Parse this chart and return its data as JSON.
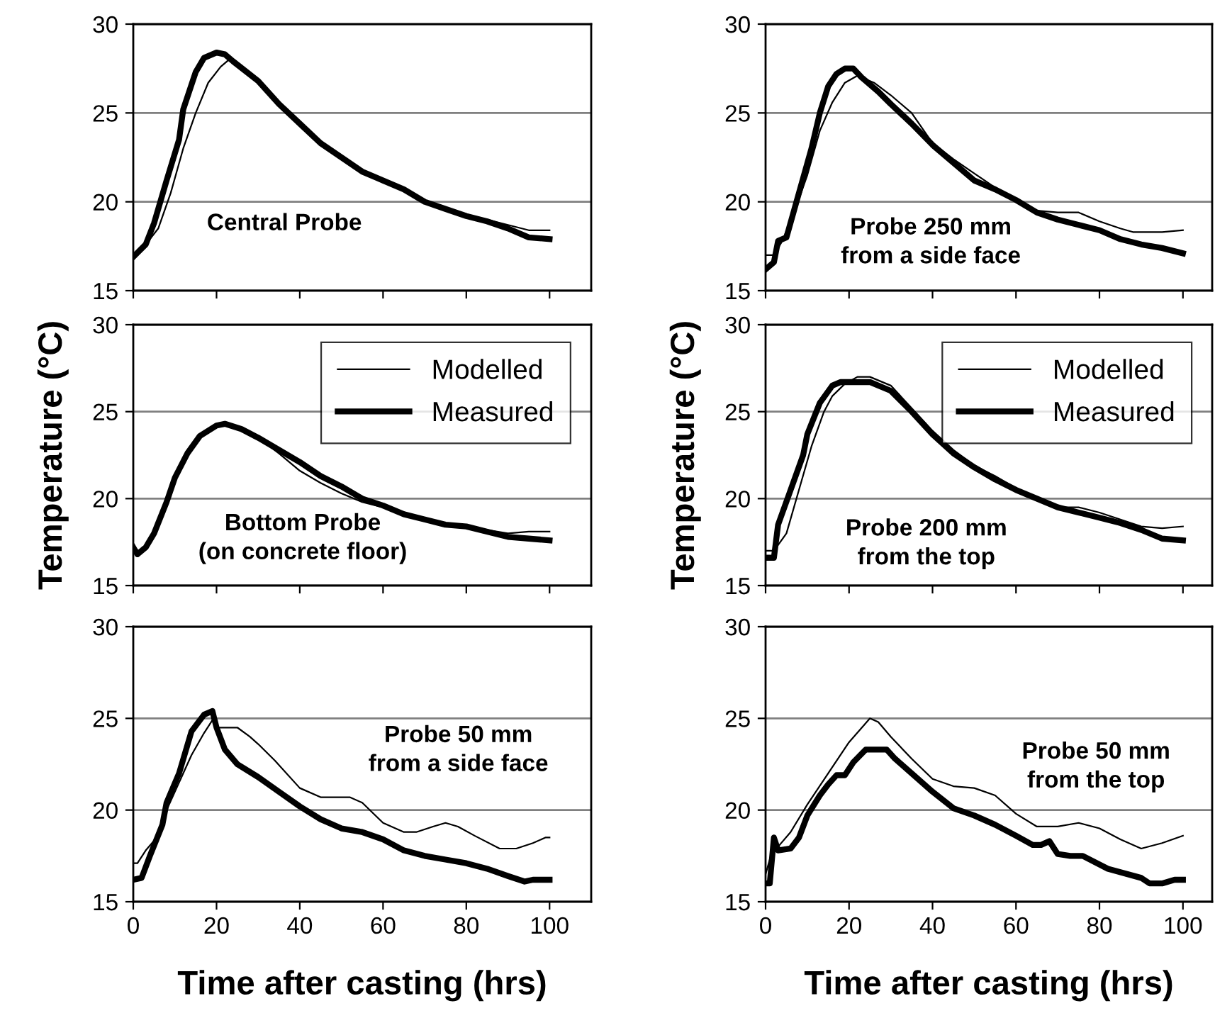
{
  "chart_data": [
    {
      "type": "line",
      "xlim": [
        0,
        110
      ],
      "xticks": [
        0,
        20,
        40,
        60,
        80,
        100
      ],
      "ylim": [
        15,
        30
      ],
      "yticks": [
        15,
        20,
        25,
        30
      ],
      "grid": "y",
      "tick_labels": "y",
      "annotations": [
        "Central Probe"
      ],
      "series": [
        {
          "color": "#000000",
          "x": [
            0,
            3,
            6,
            9,
            12,
            15,
            18,
            21,
            23,
            25,
            30,
            35,
            40,
            45,
            50,
            55,
            60,
            65,
            70,
            75,
            80,
            85,
            90,
            95,
            100
          ],
          "values": [
            16.9,
            17.6,
            18.5,
            20.5,
            23.0,
            25.0,
            26.7,
            27.6,
            28.0,
            27.7,
            26.9,
            25.5,
            24.4,
            23.3,
            22.5,
            21.7,
            21.2,
            20.7,
            20.0,
            19.6,
            19.3,
            19.0,
            18.7,
            18.4,
            18.4
          ]
        },
        {
          "color": "#000000",
          "x": [
            0,
            3,
            5,
            8,
            11,
            12,
            15,
            17,
            20,
            22,
            24,
            30,
            35,
            40,
            45,
            50,
            55,
            60,
            65,
            70,
            75,
            80,
            85,
            90,
            95,
            100
          ],
          "values": [
            16.9,
            17.6,
            18.8,
            21.2,
            23.5,
            25.2,
            27.3,
            28.1,
            28.4,
            28.3,
            27.9,
            26.8,
            25.5,
            24.4,
            23.3,
            22.5,
            21.7,
            21.2,
            20.7,
            20.0,
            19.6,
            19.2,
            18.9,
            18.5,
            18.0,
            17.9
          ]
        }
      ]
    },
    {
      "type": "line",
      "xlim": [
        0,
        107
      ],
      "xticks": [
        0,
        20,
        40,
        60,
        80,
        100
      ],
      "ylim": [
        15,
        30
      ],
      "yticks": [
        15,
        20,
        25,
        30
      ],
      "grid": "y",
      "tick_labels": "y",
      "annotations": [
        "Probe 250 mm\nfrom a side face"
      ],
      "series": [
        {
          "color": "#000000",
          "x": [
            0,
            2,
            4,
            7,
            10,
            13,
            16,
            19,
            22,
            26,
            30,
            35,
            40,
            45,
            50,
            55,
            60,
            65,
            70,
            75,
            80,
            85,
            88,
            95,
            100
          ],
          "values": [
            17.0,
            17.0,
            17.8,
            19.5,
            21.5,
            24.0,
            25.6,
            26.7,
            27.1,
            26.7,
            26.0,
            25.0,
            23.3,
            22.4,
            21.6,
            20.8,
            20.0,
            19.5,
            19.4,
            19.4,
            18.9,
            18.5,
            18.3,
            18.3,
            18.4
          ]
        },
        {
          "color": "#000000",
          "x": [
            0,
            2,
            3,
            5,
            8,
            11,
            13,
            15,
            17,
            19,
            21,
            23,
            27,
            30,
            35,
            40,
            45,
            50,
            55,
            60,
            65,
            70,
            75,
            80,
            85,
            90,
            95,
            100
          ],
          "values": [
            16.2,
            16.6,
            17.8,
            18.0,
            20.5,
            23.0,
            25.0,
            26.5,
            27.2,
            27.5,
            27.5,
            27.0,
            26.2,
            25.5,
            24.4,
            23.2,
            22.2,
            21.2,
            20.7,
            20.1,
            19.4,
            19.0,
            18.7,
            18.4,
            17.9,
            17.6,
            17.4,
            17.1
          ]
        }
      ]
    },
    {
      "type": "line",
      "xlim": [
        0,
        110
      ],
      "xticks": [
        0,
        20,
        40,
        60,
        80,
        100
      ],
      "ylim": [
        15,
        30
      ],
      "yticks": [
        15,
        20,
        25,
        30
      ],
      "grid": "y",
      "tick_labels": "y",
      "legend": "top right",
      "ylabel": "Temperature (°C)",
      "annotations": [
        "Bottom Probe\n(on concrete floor)"
      ],
      "series": [
        {
          "name": "Modelled",
          "color": "#000000",
          "x": [
            0,
            2,
            5,
            8,
            10,
            13,
            16,
            20,
            22,
            26,
            30,
            35,
            40,
            45,
            50,
            55,
            60,
            65,
            70,
            75,
            80,
            85,
            90,
            95,
            100
          ],
          "values": [
            17.0,
            17.0,
            17.8,
            19.7,
            21.1,
            22.6,
            23.6,
            24.2,
            24.4,
            24.0,
            23.5,
            22.6,
            21.6,
            20.9,
            20.3,
            19.8,
            19.5,
            19.1,
            18.8,
            18.5,
            18.4,
            18.2,
            18.0,
            18.1,
            18.1
          ]
        },
        {
          "name": "Measured",
          "color": "#000000",
          "x": [
            0,
            1,
            3,
            5,
            8,
            10,
            13,
            16,
            20,
            22,
            26,
            30,
            35,
            40,
            45,
            50,
            55,
            60,
            65,
            70,
            75,
            80,
            85,
            90,
            95,
            100
          ],
          "values": [
            17.2,
            16.8,
            17.2,
            18.0,
            19.8,
            21.2,
            22.6,
            23.6,
            24.2,
            24.3,
            24.0,
            23.5,
            22.8,
            22.1,
            21.3,
            20.7,
            20.0,
            19.6,
            19.1,
            18.8,
            18.5,
            18.4,
            18.1,
            17.8,
            17.7,
            17.6
          ]
        }
      ]
    },
    {
      "type": "line",
      "xlim": [
        0,
        107
      ],
      "xticks": [
        0,
        20,
        40,
        60,
        80,
        100
      ],
      "ylim": [
        15,
        30
      ],
      "yticks": [
        15,
        20,
        25,
        30
      ],
      "grid": "y",
      "tick_labels": "y",
      "legend": "top right",
      "ylabel": "Temperature (°C)",
      "annotations": [
        "Probe 200 mm\nfrom the top"
      ],
      "series": [
        {
          "name": "Modelled",
          "color": "#000000",
          "x": [
            0,
            2,
            5,
            8,
            11,
            14,
            16,
            19,
            22,
            25,
            30,
            35,
            40,
            45,
            50,
            55,
            60,
            65,
            70,
            75,
            80,
            85,
            90,
            95,
            100
          ],
          "values": [
            17.0,
            17.0,
            18.0,
            20.5,
            23.0,
            25.0,
            25.9,
            26.6,
            27.0,
            27.0,
            26.5,
            25.2,
            23.9,
            22.8,
            21.9,
            21.3,
            20.6,
            20.0,
            19.5,
            19.5,
            19.2,
            18.8,
            18.4,
            18.3,
            18.4
          ]
        },
        {
          "name": "Measured",
          "color": "#000000",
          "x": [
            0,
            2,
            3,
            6,
            9,
            10,
            13,
            16,
            18,
            22,
            25,
            30,
            35,
            40,
            45,
            50,
            55,
            60,
            65,
            70,
            75,
            80,
            85,
            90,
            95,
            100
          ],
          "values": [
            16.6,
            16.6,
            18.5,
            20.5,
            22.5,
            23.7,
            25.5,
            26.5,
            26.7,
            26.7,
            26.7,
            26.2,
            25.0,
            23.7,
            22.6,
            21.8,
            21.1,
            20.5,
            20.0,
            19.5,
            19.2,
            18.9,
            18.6,
            18.2,
            17.7,
            17.6
          ]
        }
      ]
    },
    {
      "type": "line",
      "xlim": [
        0,
        110
      ],
      "xticks": [
        0,
        20,
        40,
        60,
        80,
        100
      ],
      "ylim": [
        15,
        30
      ],
      "yticks": [
        15,
        20,
        25,
        30
      ],
      "grid": "y",
      "xlabel": "Time after casting (hrs)",
      "annotations": [
        "Probe 50 mm\nfrom a side face"
      ],
      "series": [
        {
          "color": "#000000",
          "x": [
            0,
            1,
            3,
            6,
            8,
            11,
            14,
            17,
            19,
            20,
            25,
            28,
            30,
            34,
            40,
            45,
            52,
            55,
            60,
            65,
            68,
            72,
            75,
            78,
            82,
            88,
            92,
            96,
            99,
            100
          ],
          "values": [
            17.1,
            17.1,
            17.8,
            18.6,
            20.0,
            21.5,
            23.0,
            24.2,
            24.9,
            24.5,
            24.5,
            24.0,
            23.6,
            22.7,
            21.2,
            20.7,
            20.7,
            20.4,
            19.3,
            18.8,
            18.8,
            19.1,
            19.3,
            19.1,
            18.6,
            17.9,
            17.9,
            18.2,
            18.5,
            18.5
          ]
        },
        {
          "color": "#000000",
          "x": [
            0,
            2,
            4,
            7,
            8,
            11,
            14,
            17,
            19,
            20,
            22,
            25,
            30,
            35,
            40,
            45,
            50,
            55,
            60,
            65,
            70,
            75,
            80,
            85,
            90,
            94,
            96,
            100
          ],
          "values": [
            16.2,
            16.3,
            17.5,
            19.2,
            20.4,
            22.0,
            24.3,
            25.2,
            25.4,
            24.5,
            23.3,
            22.5,
            21.8,
            21.0,
            20.2,
            19.5,
            19.0,
            18.8,
            18.4,
            17.8,
            17.5,
            17.3,
            17.1,
            16.8,
            16.4,
            16.1,
            16.2,
            16.2
          ]
        }
      ]
    },
    {
      "type": "line",
      "xlim": [
        0,
        107
      ],
      "xticks": [
        0,
        20,
        40,
        60,
        80,
        100
      ],
      "ylim": [
        15,
        30
      ],
      "yticks": [
        15,
        20,
        25,
        30
      ],
      "grid": "y",
      "xlabel": "Time after casting (hrs)",
      "annotations": [
        "Probe 50 mm\nfrom the top"
      ],
      "series": [
        {
          "color": "#000000",
          "x": [
            0,
            1,
            3,
            6,
            10,
            15,
            20,
            25,
            27,
            30,
            35,
            40,
            45,
            50,
            55,
            60,
            65,
            70,
            75,
            80,
            85,
            90,
            95,
            100
          ],
          "values": [
            16.5,
            17.3,
            18.0,
            18.8,
            20.3,
            22.0,
            23.7,
            25.0,
            24.8,
            24.0,
            22.8,
            21.7,
            21.3,
            21.2,
            20.8,
            19.8,
            19.1,
            19.1,
            19.3,
            19.0,
            18.4,
            17.9,
            18.2,
            18.6
          ]
        },
        {
          "color": "#000000",
          "x": [
            0,
            1,
            2,
            3,
            6,
            8,
            10,
            13,
            15,
            17,
            19,
            21,
            24,
            29,
            31,
            35,
            40,
            45,
            50,
            55,
            60,
            64,
            66,
            68,
            70,
            73,
            76,
            82,
            90,
            92,
            95,
            98,
            100
          ],
          "values": [
            16.0,
            16.0,
            18.5,
            17.8,
            17.9,
            18.5,
            19.7,
            20.8,
            21.4,
            21.9,
            21.9,
            22.6,
            23.3,
            23.3,
            22.8,
            22.0,
            21.0,
            20.1,
            19.7,
            19.2,
            18.6,
            18.1,
            18.1,
            18.3,
            17.6,
            17.5,
            17.5,
            16.8,
            16.3,
            16.0,
            16.0,
            16.2,
            16.2
          ]
        }
      ]
    }
  ]
}
